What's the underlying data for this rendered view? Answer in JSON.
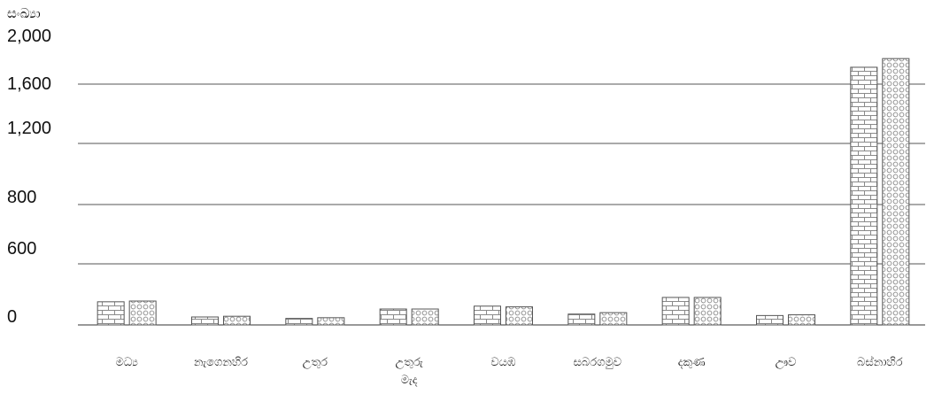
{
  "chart_data": {
    "type": "bar",
    "ylabel": "සංඛ්‍යා",
    "y_ticks": [
      "2,000",
      "1,600",
      "1,200",
      "800",
      "600",
      "0"
    ],
    "grid": true,
    "legend": "none",
    "categories": [
      [
        "මධ්‍ය"
      ],
      [
        "නැගෙනහිර"
      ],
      [
        "උතුර"
      ],
      [
        "උතුරු",
        "මැද"
      ],
      [
        "වයඹ"
      ],
      [
        "සබරගමුව"
      ],
      [
        "දකුණ"
      ],
      [
        "ඌව"
      ],
      [
        "බස්නාහිර"
      ]
    ],
    "series": [
      {
        "pattern": "brick",
        "values": [
          160,
          55,
          45,
          110,
          130,
          75,
          190,
          65,
          1780
        ]
      },
      {
        "pattern": "circles",
        "values": [
          165,
          60,
          50,
          110,
          125,
          85,
          190,
          70,
          1840
        ]
      }
    ],
    "colors": {
      "grid": "#555555",
      "bar_stroke": "#555555",
      "pattern": "#8a8a8a"
    }
  }
}
